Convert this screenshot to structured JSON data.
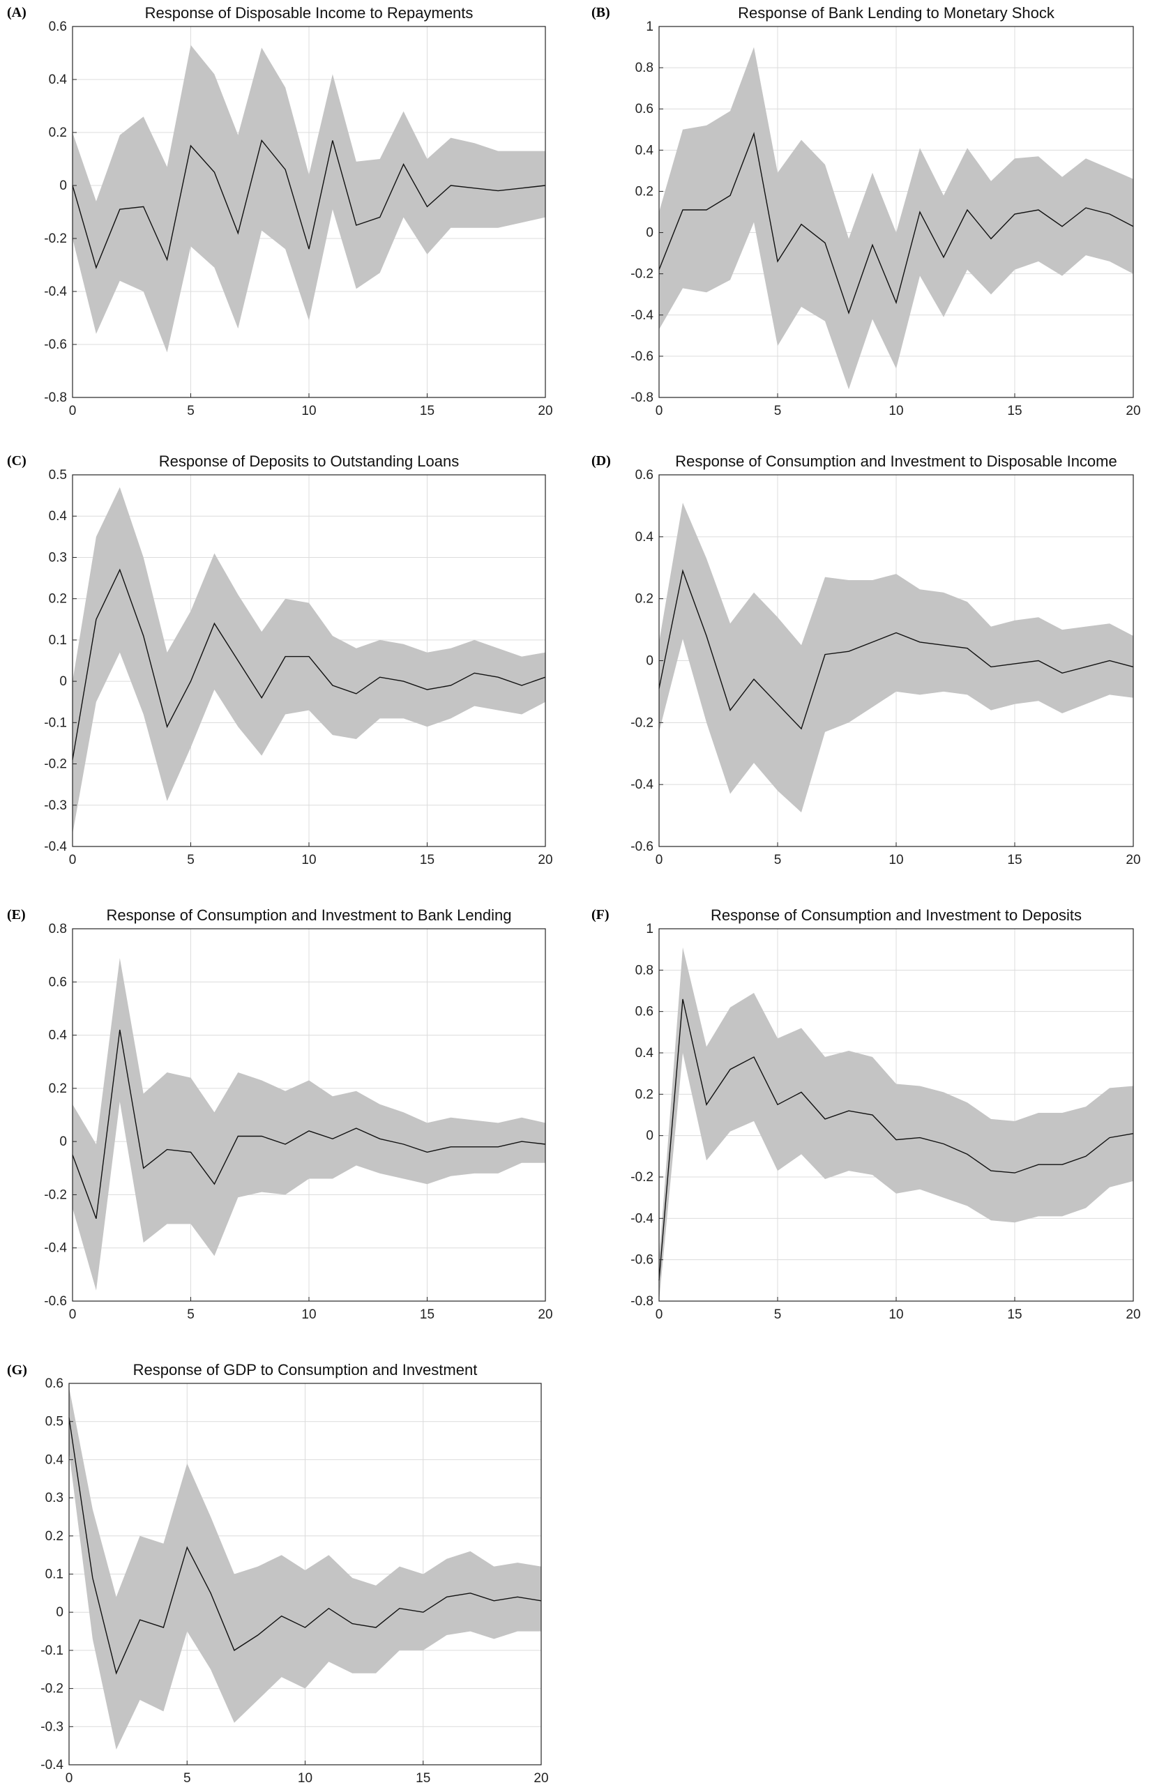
{
  "chart_data": [
    {
      "panel": "(A)",
      "type": "line",
      "title": "Response of Disposable Income to Repayments",
      "x": [
        0,
        1,
        2,
        3,
        4,
        5,
        6,
        7,
        8,
        9,
        10,
        11,
        12,
        13,
        14,
        15,
        16,
        17,
        18,
        19,
        20
      ],
      "series": [
        {
          "name": "response",
          "values": [
            0.0,
            -0.31,
            -0.09,
            -0.08,
            -0.28,
            0.15,
            0.05,
            -0.18,
            0.17,
            0.06,
            -0.24,
            0.17,
            -0.15,
            -0.12,
            0.08,
            -0.08,
            0.0,
            -0.01,
            -0.02,
            -0.01,
            0.0
          ]
        },
        {
          "name": "upper",
          "values": [
            0.2,
            -0.06,
            0.19,
            0.26,
            0.07,
            0.53,
            0.42,
            0.19,
            0.52,
            0.37,
            0.04,
            0.42,
            0.09,
            0.1,
            0.28,
            0.1,
            0.18,
            0.16,
            0.13,
            0.13,
            0.13
          ]
        },
        {
          "name": "lower",
          "values": [
            -0.2,
            -0.56,
            -0.36,
            -0.4,
            -0.63,
            -0.23,
            -0.31,
            -0.54,
            -0.17,
            -0.24,
            -0.51,
            -0.09,
            -0.39,
            -0.33,
            -0.12,
            -0.26,
            -0.16,
            -0.16,
            -0.16,
            -0.14,
            -0.12
          ]
        }
      ],
      "xlim": [
        0,
        20
      ],
      "ylim": [
        -0.8,
        0.6
      ],
      "xticks": [
        "0",
        "5",
        "10",
        "15",
        "20"
      ],
      "yticks": [
        "-0.8",
        "-0.6",
        "-0.4",
        "-0.2",
        "0",
        "0.2",
        "0.4",
        "0.6"
      ],
      "grid": true
    },
    {
      "panel": "(B)",
      "type": "line",
      "title": "Response of Bank Lending to Monetary Shock",
      "x": [
        0,
        1,
        2,
        3,
        4,
        5,
        6,
        7,
        8,
        9,
        10,
        11,
        12,
        13,
        14,
        15,
        16,
        17,
        18,
        19,
        20
      ],
      "series": [
        {
          "name": "response",
          "values": [
            -0.18,
            0.11,
            0.11,
            0.18,
            0.48,
            -0.14,
            0.04,
            -0.05,
            -0.39,
            -0.06,
            -0.34,
            0.1,
            -0.12,
            0.11,
            -0.03,
            0.09,
            0.11,
            0.03,
            0.12,
            0.09,
            0.03
          ]
        },
        {
          "name": "upper",
          "values": [
            0.1,
            0.5,
            0.52,
            0.59,
            0.9,
            0.29,
            0.45,
            0.33,
            -0.03,
            0.29,
            0.0,
            0.41,
            0.18,
            0.41,
            0.25,
            0.36,
            0.37,
            0.27,
            0.36,
            0.31,
            0.26
          ]
        },
        {
          "name": "lower",
          "values": [
            -0.47,
            -0.27,
            -0.29,
            -0.23,
            0.05,
            -0.55,
            -0.36,
            -0.43,
            -0.76,
            -0.42,
            -0.66,
            -0.21,
            -0.41,
            -0.18,
            -0.3,
            -0.18,
            -0.14,
            -0.21,
            -0.11,
            -0.14,
            -0.2
          ]
        }
      ],
      "xlim": [
        0,
        20
      ],
      "ylim": [
        -0.8,
        1.0
      ],
      "xticks": [
        "0",
        "5",
        "10",
        "15",
        "20"
      ],
      "yticks": [
        "-0.8",
        "-0.6",
        "-0.4",
        "-0.2",
        "0",
        "0.2",
        "0.4",
        "0.6",
        "0.8",
        "1"
      ],
      "grid": true
    },
    {
      "panel": "(C)",
      "type": "line",
      "title": "Response of Deposits to Outstanding Loans",
      "x": [
        0,
        1,
        2,
        3,
        4,
        5,
        6,
        7,
        8,
        9,
        10,
        11,
        12,
        13,
        14,
        15,
        16,
        17,
        18,
        19,
        20
      ],
      "series": [
        {
          "name": "response",
          "values": [
            -0.19,
            0.15,
            0.27,
            0.11,
            -0.11,
            0.0,
            0.14,
            0.05,
            -0.04,
            0.06,
            0.06,
            -0.01,
            -0.03,
            0.01,
            0.0,
            -0.02,
            -0.01,
            0.02,
            0.01,
            -0.01,
            0.01
          ]
        },
        {
          "name": "upper",
          "values": [
            0.0,
            0.35,
            0.47,
            0.3,
            0.07,
            0.17,
            0.31,
            0.21,
            0.12,
            0.2,
            0.19,
            0.11,
            0.08,
            0.1,
            0.09,
            0.07,
            0.08,
            0.1,
            0.08,
            0.06,
            0.07
          ]
        },
        {
          "name": "lower",
          "values": [
            -0.37,
            -0.05,
            0.07,
            -0.08,
            -0.29,
            -0.16,
            -0.02,
            -0.11,
            -0.18,
            -0.08,
            -0.07,
            -0.13,
            -0.14,
            -0.09,
            -0.09,
            -0.11,
            -0.09,
            -0.06,
            -0.07,
            -0.08,
            -0.05
          ]
        }
      ],
      "xlim": [
        0,
        20
      ],
      "ylim": [
        -0.4,
        0.5
      ],
      "xticks": [
        "0",
        "5",
        "10",
        "15",
        "20"
      ],
      "yticks": [
        "-0.4",
        "-0.3",
        "-0.2",
        "-0.1",
        "0",
        "0.1",
        "0.2",
        "0.3",
        "0.4",
        "0.5"
      ],
      "grid": true
    },
    {
      "panel": "(D)",
      "type": "line",
      "title": "Response of Consumption and Investment to Disposable Income",
      "x": [
        0,
        1,
        2,
        3,
        4,
        5,
        6,
        7,
        8,
        9,
        10,
        11,
        12,
        13,
        14,
        15,
        16,
        17,
        18,
        19,
        20
      ],
      "series": [
        {
          "name": "response",
          "values": [
            -0.09,
            0.29,
            0.08,
            -0.16,
            -0.06,
            -0.14,
            -0.22,
            0.02,
            0.03,
            0.06,
            0.09,
            0.06,
            0.05,
            0.04,
            -0.02,
            -0.01,
            0.0,
            -0.04,
            -0.02,
            0.0,
            -0.02
          ]
        },
        {
          "name": "upper",
          "values": [
            0.06,
            0.51,
            0.33,
            0.12,
            0.22,
            0.14,
            0.05,
            0.27,
            0.26,
            0.26,
            0.28,
            0.23,
            0.22,
            0.19,
            0.11,
            0.13,
            0.14,
            0.1,
            0.11,
            0.12,
            0.08
          ]
        },
        {
          "name": "lower",
          "values": [
            -0.23,
            0.07,
            -0.2,
            -0.43,
            -0.33,
            -0.42,
            -0.49,
            -0.23,
            -0.2,
            -0.15,
            -0.1,
            -0.11,
            -0.1,
            -0.11,
            -0.16,
            -0.14,
            -0.13,
            -0.17,
            -0.14,
            -0.11,
            -0.12
          ]
        }
      ],
      "xlim": [
        0,
        20
      ],
      "ylim": [
        -0.6,
        0.6
      ],
      "xticks": [
        "0",
        "5",
        "10",
        "15",
        "20"
      ],
      "yticks": [
        "-0.6",
        "-0.4",
        "-0.2",
        "0",
        "0.2",
        "0.4",
        "0.6"
      ],
      "grid": true
    },
    {
      "panel": "(E)",
      "type": "line",
      "title": "Response of Consumption and Investment to Bank Lending",
      "x": [
        0,
        1,
        2,
        3,
        4,
        5,
        6,
        7,
        8,
        9,
        10,
        11,
        12,
        13,
        14,
        15,
        16,
        17,
        18,
        19,
        20
      ],
      "series": [
        {
          "name": "response",
          "values": [
            -0.05,
            -0.29,
            0.42,
            -0.1,
            -0.03,
            -0.04,
            -0.16,
            0.02,
            0.02,
            -0.01,
            0.04,
            0.01,
            0.05,
            0.01,
            -0.01,
            -0.04,
            -0.02,
            -0.02,
            -0.02,
            0.0,
            -0.01
          ]
        },
        {
          "name": "upper",
          "values": [
            0.14,
            -0.01,
            0.69,
            0.18,
            0.26,
            0.24,
            0.11,
            0.26,
            0.23,
            0.19,
            0.23,
            0.17,
            0.19,
            0.14,
            0.11,
            0.07,
            0.09,
            0.08,
            0.07,
            0.09,
            0.07
          ]
        },
        {
          "name": "lower",
          "values": [
            -0.25,
            -0.56,
            0.15,
            -0.38,
            -0.31,
            -0.31,
            -0.43,
            -0.21,
            -0.19,
            -0.2,
            -0.14,
            -0.14,
            -0.09,
            -0.12,
            -0.14,
            -0.16,
            -0.13,
            -0.12,
            -0.12,
            -0.08,
            -0.08
          ]
        }
      ],
      "xlim": [
        0,
        20
      ],
      "ylim": [
        -0.6,
        0.8
      ],
      "xticks": [
        "0",
        "5",
        "10",
        "15",
        "20"
      ],
      "yticks": [
        "-0.6",
        "-0.4",
        "-0.2",
        "0",
        "0.2",
        "0.4",
        "0.6",
        "0.8"
      ],
      "grid": true
    },
    {
      "panel": "(F)",
      "type": "line",
      "title": "Response of Consumption and Investment to Deposits",
      "x": [
        0,
        1,
        2,
        3,
        4,
        5,
        6,
        7,
        8,
        9,
        10,
        11,
        12,
        13,
        14,
        15,
        16,
        17,
        18,
        19,
        20
      ],
      "series": [
        {
          "name": "response",
          "values": [
            -0.7,
            0.66,
            0.15,
            0.32,
            0.38,
            0.15,
            0.21,
            0.08,
            0.12,
            0.1,
            -0.02,
            -0.01,
            -0.04,
            -0.09,
            -0.17,
            -0.18,
            -0.14,
            -0.14,
            -0.1,
            -0.01,
            0.01
          ]
        },
        {
          "name": "upper",
          "values": [
            -0.6,
            0.91,
            0.43,
            0.62,
            0.69,
            0.47,
            0.52,
            0.38,
            0.41,
            0.38,
            0.25,
            0.24,
            0.21,
            0.16,
            0.08,
            0.07,
            0.11,
            0.11,
            0.14,
            0.23,
            0.24
          ]
        },
        {
          "name": "lower",
          "values": [
            -0.8,
            0.4,
            -0.12,
            0.02,
            0.07,
            -0.17,
            -0.09,
            -0.21,
            -0.17,
            -0.19,
            -0.28,
            -0.26,
            -0.3,
            -0.34,
            -0.41,
            -0.42,
            -0.39,
            -0.39,
            -0.35,
            -0.25,
            -0.22
          ]
        }
      ],
      "xlim": [
        0,
        20
      ],
      "ylim": [
        -0.8,
        1.0
      ],
      "xticks": [
        "0",
        "5",
        "10",
        "15",
        "20"
      ],
      "yticks": [
        "-0.8",
        "-0.6",
        "-0.4",
        "-0.2",
        "0",
        "0.2",
        "0.4",
        "0.6",
        "0.8",
        "1"
      ],
      "grid": true
    },
    {
      "panel": "(G)",
      "type": "line",
      "title": "Response of GDP to Consumption and Investment",
      "x": [
        0,
        1,
        2,
        3,
        4,
        5,
        6,
        7,
        8,
        9,
        10,
        11,
        12,
        13,
        14,
        15,
        16,
        17,
        18,
        19,
        20
      ],
      "series": [
        {
          "name": "response",
          "values": [
            0.51,
            0.09,
            -0.16,
            -0.02,
            -0.04,
            0.17,
            0.05,
            -0.1,
            -0.06,
            -0.01,
            -0.04,
            0.01,
            -0.03,
            -0.04,
            0.01,
            0.0,
            0.04,
            0.05,
            0.03,
            0.04,
            0.03
          ]
        },
        {
          "name": "upper",
          "values": [
            0.59,
            0.27,
            0.04,
            0.2,
            0.18,
            0.39,
            0.25,
            0.1,
            0.12,
            0.15,
            0.11,
            0.15,
            0.09,
            0.07,
            0.12,
            0.1,
            0.14,
            0.16,
            0.12,
            0.13,
            0.12
          ]
        },
        {
          "name": "lower",
          "values": [
            0.42,
            -0.07,
            -0.36,
            -0.23,
            -0.26,
            -0.05,
            -0.15,
            -0.29,
            -0.23,
            -0.17,
            -0.2,
            -0.13,
            -0.16,
            -0.16,
            -0.1,
            -0.1,
            -0.06,
            -0.05,
            -0.07,
            -0.05,
            -0.05
          ]
        }
      ],
      "xlim": [
        0,
        20
      ],
      "ylim": [
        -0.4,
        0.6
      ],
      "xticks": [
        "0",
        "5",
        "10",
        "15",
        "20"
      ],
      "yticks": [
        "-0.4",
        "-0.3",
        "-0.2",
        "-0.1",
        "0",
        "0.1",
        "0.2",
        "0.3",
        "0.4",
        "0.5",
        "0.6"
      ],
      "grid": true
    }
  ]
}
